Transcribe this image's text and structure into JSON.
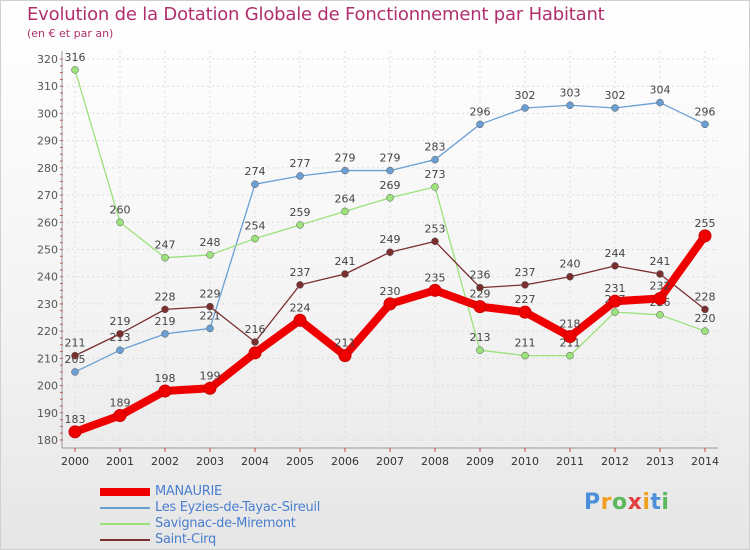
{
  "chart_data": {
    "type": "line",
    "title": "Evolution de la Dotation Globale de Fonctionnement par Habitant",
    "subtitle": "(en € et par an)",
    "xlabel": "",
    "ylabel": "",
    "ylim": [
      180,
      320
    ],
    "yticks": [
      180,
      190,
      200,
      210,
      220,
      230,
      240,
      250,
      260,
      270,
      280,
      290,
      300,
      310,
      320
    ],
    "categories": [
      "2000",
      "2001",
      "2002",
      "2003",
      "2004",
      "2005",
      "2006",
      "2007",
      "2008",
      "2009",
      "2010",
      "2011",
      "2012",
      "2013",
      "2014"
    ],
    "grid": true,
    "series": [
      {
        "name": "MANAURIE",
        "color": "#ee0000",
        "emphasis": true,
        "values": [
          183,
          189,
          198,
          199,
          212,
          224,
          211,
          230,
          235,
          229,
          227,
          218,
          231,
          232,
          255
        ],
        "labels": [
          "183",
          "189",
          "198",
          "199",
          "",
          "224",
          "211",
          "230",
          "235",
          "229",
          "227",
          "218",
          "231",
          "232",
          "255"
        ]
      },
      {
        "name": "Les Eyzies-de-Tayac-Sireuil",
        "color": "#6a9fd4",
        "values": [
          205,
          213,
          219,
          221,
          274,
          277,
          279,
          279,
          283,
          296,
          302,
          303,
          302,
          304,
          296
        ],
        "labels": [
          "205",
          "213",
          "219",
          "221",
          "274",
          "277",
          "279",
          "279",
          "283",
          "296",
          "302",
          "303",
          "302",
          "304",
          "296"
        ]
      },
      {
        "name": "Savignac-de-Miremont",
        "color": "#9be27a",
        "values": [
          316,
          260,
          247,
          248,
          254,
          259,
          264,
          269,
          273,
          213,
          211,
          211,
          227,
          226,
          220
        ],
        "labels": [
          "316",
          "260",
          "247",
          "248",
          "254",
          "259",
          "264",
          "269",
          "273",
          "213",
          "211",
          "211",
          "227",
          "226",
          "220"
        ]
      },
      {
        "name": "Saint-Cirq",
        "color": "#7a2e2e",
        "values": [
          211,
          219,
          228,
          229,
          216,
          237,
          241,
          249,
          253,
          236,
          237,
          240,
          244,
          241,
          228
        ],
        "labels": [
          "211",
          "219",
          "228",
          "229",
          "216",
          "237",
          "241",
          "249",
          "253",
          "236",
          "237",
          "240",
          "244",
          "241",
          "228"
        ]
      }
    ],
    "legend": {
      "position": "bottom-left",
      "items": [
        "MANAURIE",
        "Les Eyzies-de-Tayac-Sireuil",
        "Savignac-de-Miremont",
        "Saint-Cirq"
      ]
    }
  },
  "brand": {
    "letters": [
      "P",
      "r",
      "o",
      "x",
      "i",
      "t",
      "i"
    ],
    "colors": [
      "#4a90d9",
      "#f0a020",
      "#5cb85c",
      "#e04040",
      "#f0a020",
      "#4a90d9",
      "#5cb85c"
    ]
  }
}
